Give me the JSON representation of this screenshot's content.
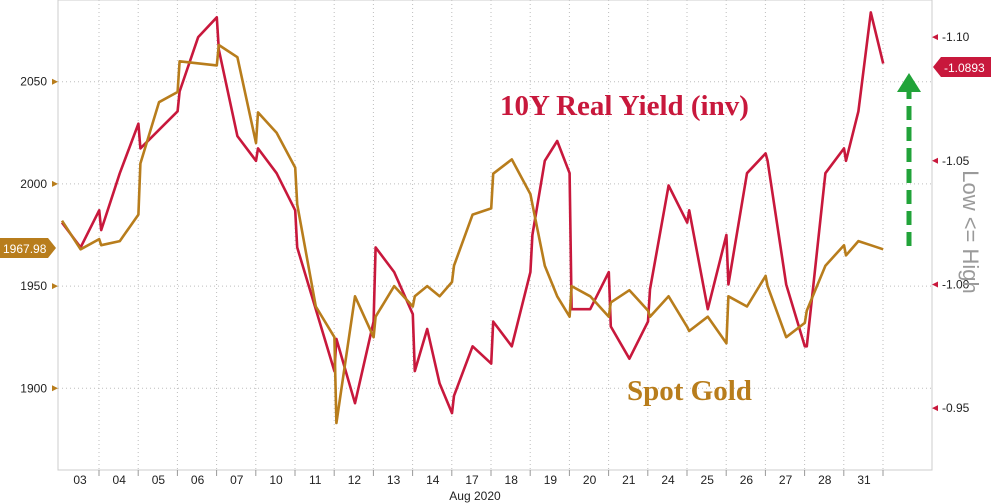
{
  "chart_data": {
    "type": "line",
    "xlabel": "Aug 2020",
    "x_ticks": [
      "03",
      "04",
      "05",
      "06",
      "07",
      "10",
      "11",
      "12",
      "13",
      "14",
      "17",
      "18",
      "19",
      "20",
      "21",
      "24",
      "25",
      "26",
      "27",
      "28",
      "31"
    ],
    "left_axis": {
      "ticks": [
        "1900",
        "1950",
        "2000",
        "2050"
      ],
      "range": [
        1860,
        2090
      ]
    },
    "right_axis": {
      "ticks": [
        "-0.95",
        "-1.00",
        "-1.05",
        "-1.10"
      ],
      "range": [
        -0.925,
        -1.115
      ],
      "inverted_scale_label": "Low <= High"
    },
    "series": [
      {
        "name": "10Y Real Yield (inv)",
        "axis": "right",
        "color": "#c8183c",
        "last_value_label": "-1.0893",
        "values": [
          [
            "03",
            -1.025
          ],
          [
            "03",
            -1.015
          ],
          [
            "03",
            -1.03
          ],
          [
            "04",
            -1.022
          ],
          [
            "04",
            -1.045
          ],
          [
            "04",
            -1.065
          ],
          [
            "05",
            -1.055
          ],
          [
            "05",
            -1.07
          ],
          [
            "06",
            -1.078
          ],
          [
            "06",
            -1.1
          ],
          [
            "06",
            -1.108
          ],
          [
            "07",
            -1.095
          ],
          [
            "07",
            -1.06
          ],
          [
            "07",
            -1.05
          ],
          [
            "10",
            -1.055
          ],
          [
            "10",
            -1.045
          ],
          [
            "10",
            -1.03
          ],
          [
            "11",
            -1.015
          ],
          [
            "11",
            -0.99
          ],
          [
            "11",
            -0.965
          ],
          [
            "12",
            -0.978
          ],
          [
            "12",
            -0.952
          ],
          [
            "12",
            -0.985
          ],
          [
            "13",
            -1.015
          ],
          [
            "13",
            -1.005
          ],
          [
            "13",
            -0.988
          ],
          [
            "14",
            -0.965
          ],
          [
            "14",
            -0.982
          ],
          [
            "14",
            -0.96
          ],
          [
            "14",
            -0.948
          ],
          [
            "17",
            -0.955
          ],
          [
            "17",
            -0.975
          ],
          [
            "17",
            -0.968
          ],
          [
            "18",
            -0.985
          ],
          [
            "18",
            -0.975
          ],
          [
            "18",
            -1.005
          ],
          [
            "19",
            -1.02
          ],
          [
            "19",
            -1.05
          ],
          [
            "19",
            -1.058
          ],
          [
            "19",
            -1.045
          ],
          [
            "20",
            -0.99
          ],
          [
            "20",
            -0.99
          ],
          [
            "20",
            -1.005
          ],
          [
            "21",
            -0.983
          ],
          [
            "21",
            -0.97
          ],
          [
            "21",
            -0.985
          ],
          [
            "24",
            -0.998
          ],
          [
            "24",
            -1.04
          ],
          [
            "24",
            -1.025
          ],
          [
            "25",
            -1.03
          ],
          [
            "25",
            -0.99
          ],
          [
            "25",
            -1.02
          ],
          [
            "26",
            -1.0
          ],
          [
            "26",
            -1.045
          ],
          [
            "26",
            -1.053
          ],
          [
            "27",
            -1.05
          ],
          [
            "27",
            -1.0
          ],
          [
            "27",
            -0.975
          ],
          [
            "28",
            -0.975
          ],
          [
            "28",
            -1.045
          ],
          [
            "28",
            -1.055
          ],
          [
            "31",
            -1.05
          ],
          [
            "31",
            -1.07
          ],
          [
            "31",
            -1.11
          ],
          [
            "31",
            -1.0893
          ]
        ]
      },
      {
        "name": "Spot Gold",
        "axis": "left",
        "color": "#b87d1c",
        "last_value_label": "1967.98",
        "values": [
          [
            "03",
            1982
          ],
          [
            "03",
            1968
          ],
          [
            "03",
            1973
          ],
          [
            "04",
            1970
          ],
          [
            "04",
            1972
          ],
          [
            "04",
            1985
          ],
          [
            "05",
            2010
          ],
          [
            "05",
            2040
          ],
          [
            "05",
            2045
          ],
          [
            "06",
            2060
          ],
          [
            "06",
            2058
          ],
          [
            "07",
            2068
          ],
          [
            "07",
            2062
          ],
          [
            "07",
            2020
          ],
          [
            "10",
            2035
          ],
          [
            "10",
            2025
          ],
          [
            "10",
            2008
          ],
          [
            "11",
            1990
          ],
          [
            "11",
            1940
          ],
          [
            "11",
            1925
          ],
          [
            "12",
            1883
          ],
          [
            "12",
            1945
          ],
          [
            "12",
            1925
          ],
          [
            "13",
            1935
          ],
          [
            "13",
            1950
          ],
          [
            "13",
            1940
          ],
          [
            "14",
            1945
          ],
          [
            "14",
            1950
          ],
          [
            "14",
            1945
          ],
          [
            "14",
            1952
          ],
          [
            "17",
            1960
          ],
          [
            "17",
            1985
          ],
          [
            "17",
            1988
          ],
          [
            "18",
            2005
          ],
          [
            "18",
            2012
          ],
          [
            "18",
            1995
          ],
          [
            "19",
            1990
          ],
          [
            "19",
            1960
          ],
          [
            "19",
            1945
          ],
          [
            "19",
            1935
          ],
          [
            "20",
            1950
          ],
          [
            "20",
            1945
          ],
          [
            "20",
            1935
          ],
          [
            "21",
            1942
          ],
          [
            "21",
            1948
          ],
          [
            "21",
            1938
          ],
          [
            "24",
            1935
          ],
          [
            "24",
            1945
          ],
          [
            "24",
            1930
          ],
          [
            "25",
            1928
          ],
          [
            "25",
            1935
          ],
          [
            "25",
            1922
          ],
          [
            "26",
            1945
          ],
          [
            "26",
            1940
          ],
          [
            "26",
            1955
          ],
          [
            "27",
            1950
          ],
          [
            "27",
            1925
          ],
          [
            "27",
            1932
          ],
          [
            "28",
            1938
          ],
          [
            "28",
            1960
          ],
          [
            "28",
            1970
          ],
          [
            "31",
            1965
          ],
          [
            "31",
            1972
          ],
          [
            "31",
            1970
          ],
          [
            "31",
            1967.98
          ]
        ]
      }
    ],
    "annotations": [
      "10Y Real Yield (inv)",
      "Spot Gold"
    ],
    "grid": true,
    "legend": "none"
  }
}
